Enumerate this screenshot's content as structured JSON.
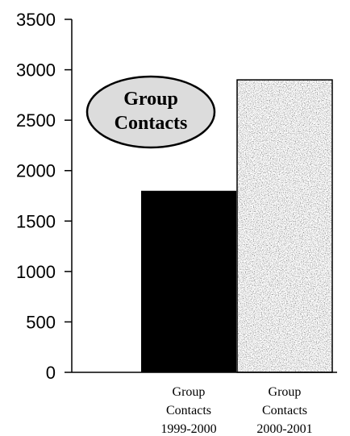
{
  "chart_data": {
    "type": "bar",
    "title": "Group Contacts",
    "categories": [
      "Group Contacts 1999-2000",
      "Group Contacts 2000-2001"
    ],
    "category_lines": [
      [
        "Group",
        "Contacts",
        "1999-2000"
      ],
      [
        "Group",
        "Contacts",
        "2000-2001"
      ]
    ],
    "values": [
      1800,
      2900
    ],
    "bar_fills": [
      "solid-black",
      "gray-speckled"
    ],
    "bar_colors": [
      "#000000",
      "#8a8a8a"
    ],
    "ylim": [
      0,
      3500
    ],
    "yticks": [
      0,
      500,
      1000,
      1500,
      2000,
      2500,
      3000,
      3500
    ],
    "ytick_labels": [
      "0",
      "500",
      "1000",
      "1500",
      "2000",
      "2500",
      "3000",
      "3500"
    ],
    "grid": false,
    "title_style": "ellipse-callout"
  }
}
